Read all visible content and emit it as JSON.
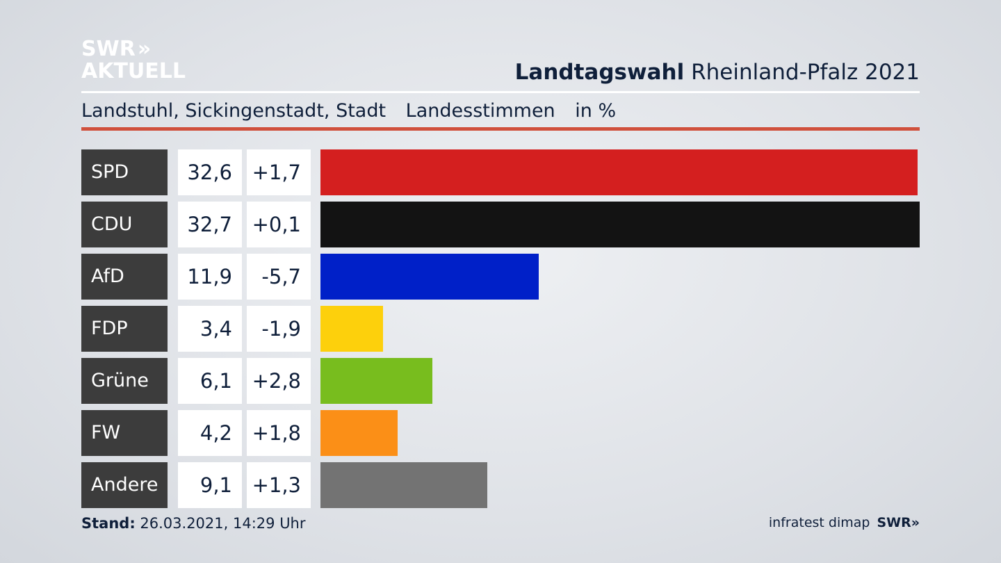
{
  "logo": {
    "line1": "SWR",
    "chevrons": "»",
    "line2": "AKTUELL"
  },
  "title": {
    "bold": "Landtagswahl",
    "rest": "Rheinland-Pfalz 2021"
  },
  "subtitle": {
    "location": "Landstuhl, Sickingenstadt, Stadt",
    "measure": "Landesstimmen",
    "unit": "in %"
  },
  "colors": {
    "SPD": "#d41f1f",
    "CDU": "#131313",
    "AfD": "#0020c8",
    "FDP": "#fdd00c",
    "Grüne": "#78bd1e",
    "FW": "#fb8f17",
    "Andere": "#737373"
  },
  "chart_data": {
    "type": "bar",
    "orientation": "horizontal",
    "categories": [
      "SPD",
      "CDU",
      "AfD",
      "FDP",
      "Grüne",
      "FW",
      "Andere"
    ],
    "values": [
      32.6,
      32.7,
      11.9,
      3.4,
      6.1,
      4.2,
      9.1
    ],
    "value_labels": [
      "32,6",
      "32,7",
      "11,9",
      "3,4",
      "6,1",
      "4,2",
      "9,1"
    ],
    "diff_labels": [
      "+1,7",
      "+0,1",
      "-5,7",
      "-1,9",
      "+2,8",
      "+1,8",
      "+1,3"
    ],
    "diffs": [
      1.7,
      0.1,
      -5.7,
      -1.9,
      2.8,
      1.8,
      1.3
    ],
    "xlim": [
      0,
      32.7
    ]
  },
  "footer": {
    "stand_label": "Stand:",
    "stand_value": "26.03.2021, 14:29 Uhr",
    "source": "infratest dimap",
    "brand": "SWR»"
  }
}
